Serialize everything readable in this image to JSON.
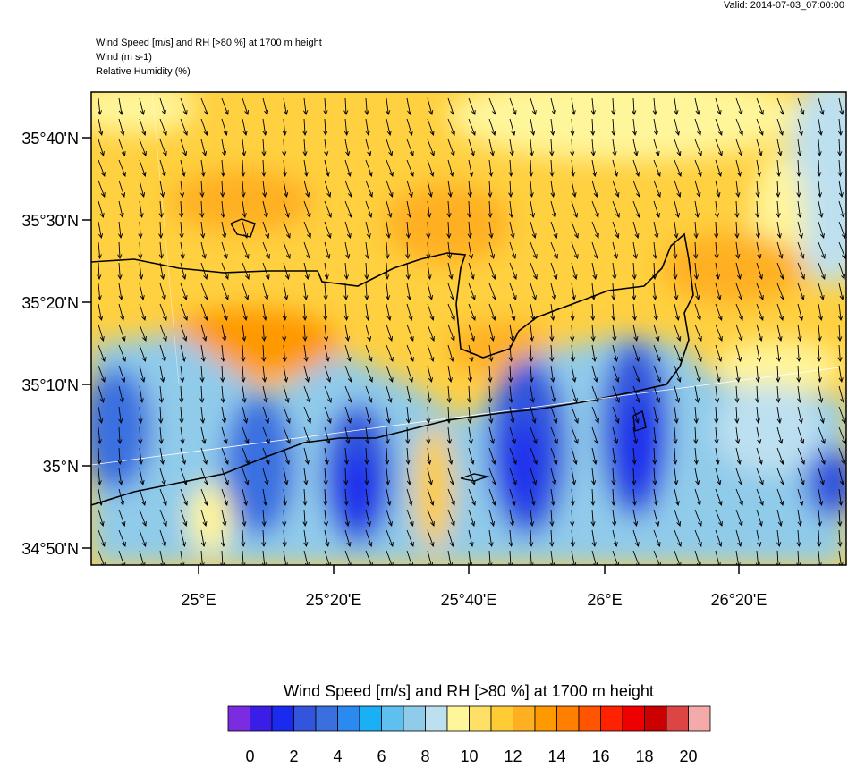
{
  "valid": "Valid: 2014-07-03_07:00:00",
  "header": {
    "lines": [
      "Wind Speed [m/s] and RH [>80 %] at 1700 m height",
      "Wind   (m s-1)",
      "Relative Humidity   (%)"
    ]
  },
  "map": {
    "lat_labels": [
      "35°40'N",
      "35°30'N",
      "35°20'N",
      "35°10'N",
      "35°N",
      "34°50'N"
    ],
    "lon_labels": [
      "25°E",
      "25°20'E",
      "25°40'E",
      "26°E",
      "26°20'E"
    ]
  },
  "colorbar": {
    "title": "Wind Speed [m/s] and RH [>80 %] at 1700 m height",
    "colors": [
      "#7b2be0",
      "#3a1ee8",
      "#1a2aee",
      "#3355dd",
      "#3a6fe0",
      "#2a8af0",
      "#1ab0f5",
      "#5ec0ee",
      "#90cbea",
      "#bde0f0",
      "#fff59a",
      "#ffe066",
      "#ffcc33",
      "#ffb020",
      "#ff9900",
      "#ff7f00",
      "#ff5500",
      "#ff2200",
      "#ee0000",
      "#cc0000",
      "#dd4444",
      "#f5aaaa"
    ],
    "labels": [
      0,
      2,
      4,
      6,
      8,
      10,
      12,
      14,
      16,
      18,
      20
    ]
  }
}
